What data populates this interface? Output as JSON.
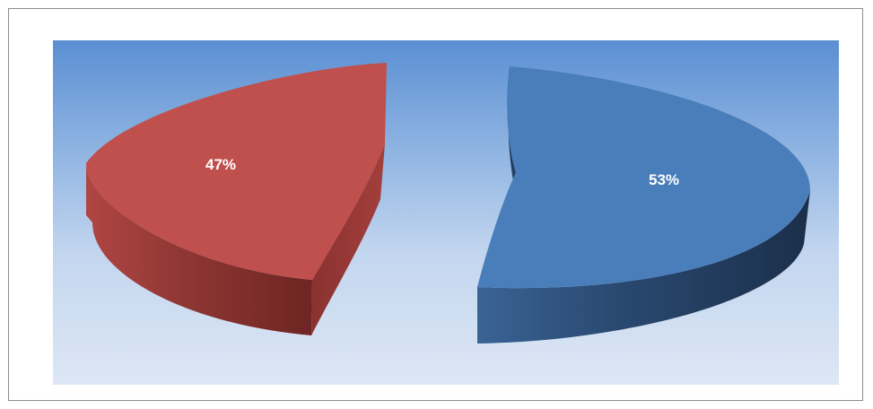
{
  "chart_data": {
    "type": "pie",
    "title": "",
    "slices": [
      {
        "label": "53%",
        "value": 53,
        "color": "#4f81bd"
      },
      {
        "label": "47%",
        "value": 47,
        "color": "#c0504d"
      }
    ],
    "legend": "none",
    "style": "3d-exploded"
  }
}
